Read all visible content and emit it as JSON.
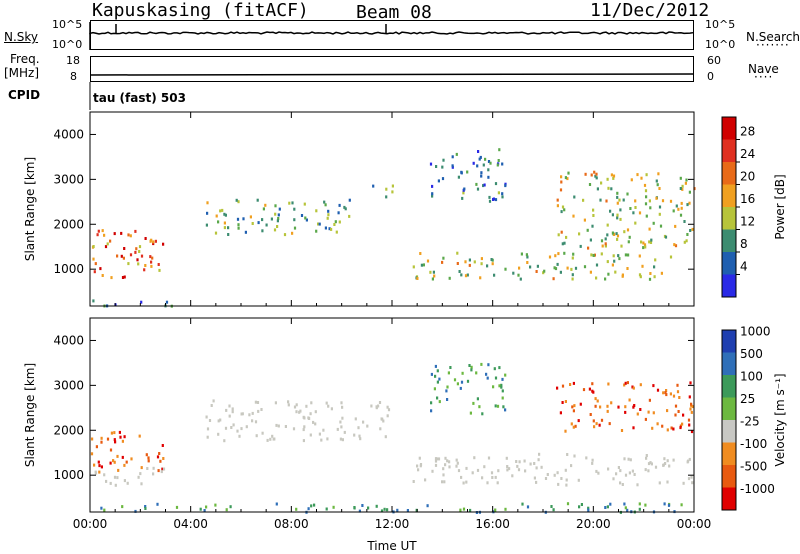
{
  "header": {
    "station": "Kapuskasing (fitACF)",
    "beam": "Beam 08",
    "date": "11/Dec/2012"
  },
  "aux_panels": {
    "nsky_label": "N.Sky",
    "nsky_ticks": [
      "10^5",
      "10^0"
    ],
    "nsearch_label": "N.Search",
    "nsearch_ticks": [
      "10^5",
      "10^0"
    ],
    "freq_label_1": "Freq.",
    "freq_label_2": "[MHz]",
    "freq_ticks": [
      "18",
      "8"
    ],
    "nave_label": "Nave",
    "nave_ticks": [
      "60",
      "0"
    ],
    "cpid_label": "CPID",
    "cpid_text": "tau (fast) 503"
  },
  "colors": {
    "power_scale": [
      "#2a2ae6",
      "#1f5fb0",
      "#3c8c70",
      "#5aa84a",
      "#b7c43a",
      "#f0a020",
      "#e86a18",
      "#e03020",
      "#d00000"
    ],
    "velocity_scale": [
      "#e00000",
      "#e85a10",
      "#f08c20",
      "#b8b8b0",
      "#c8c8c4",
      "#6cb840",
      "#3c9a5a",
      "#2f6fb8",
      "#1f3fb0"
    ],
    "ground_scatter": "#c8c8c0"
  },
  "chart_data": [
    {
      "type": "heatmap",
      "title": "",
      "xlabel": "Time UT",
      "ylabel": "Slant Range [km]",
      "colorbar_label": "Power [dB]",
      "colorbar_ticks": [
        "4",
        "8",
        "12",
        "16",
        "20",
        "24",
        "28"
      ],
      "colorbar_range": [
        0,
        30
      ],
      "xlim": [
        0,
        24
      ],
      "ylim": [
        180,
        4500
      ],
      "x_ticks": [
        "00:00",
        "04:00",
        "08:00",
        "12:00",
        "16:00",
        "20:00",
        "00:00"
      ],
      "y_ticks": [
        "1000",
        "2000",
        "3000",
        "4000"
      ],
      "echo_regions": [
        {
          "t_start": 0.0,
          "t_end": 3.0,
          "r_min": 800,
          "r_max": 1900,
          "power": 22
        },
        {
          "t_start": 0.0,
          "t_end": 3.5,
          "r_min": 200,
          "r_max": 350,
          "power": 8
        },
        {
          "t_start": 4.5,
          "t_end": 10.5,
          "r_min": 1800,
          "r_max": 2600,
          "power": 10
        },
        {
          "t_start": 11.2,
          "t_end": 12.0,
          "r_min": 2500,
          "r_max": 2900,
          "power": 10
        },
        {
          "t_start": 12.8,
          "t_end": 23.5,
          "r_min": 800,
          "r_max": 1400,
          "power": 14
        },
        {
          "t_start": 18.5,
          "t_end": 24.0,
          "r_min": 1500,
          "r_max": 3200,
          "power": 14
        },
        {
          "t_start": 13.5,
          "t_end": 16.5,
          "r_min": 2500,
          "r_max": 3700,
          "power": 6
        }
      ]
    },
    {
      "type": "heatmap",
      "title": "",
      "xlabel": "Time UT",
      "ylabel": "Slant Range [km]",
      "colorbar_label": "Velocity [m s⁻¹]",
      "colorbar_ticks": [
        "1000",
        "500",
        "100",
        "25",
        "-25",
        "-100",
        "-500",
        "-1000"
      ],
      "xlim": [
        0,
        24
      ],
      "ylim": [
        180,
        4500
      ],
      "x_ticks": [
        "00:00",
        "04:00",
        "08:00",
        "12:00",
        "16:00",
        "20:00",
        "00:00"
      ],
      "y_ticks": [
        "1000",
        "2000",
        "3000",
        "4000"
      ],
      "echo_regions": [
        {
          "t_start": 0.0,
          "t_end": 3.0,
          "r_min": 1100,
          "r_max": 2000,
          "velocity": -200
        },
        {
          "t_start": 0.0,
          "t_end": 3.0,
          "r_min": 800,
          "r_max": 1200,
          "velocity": 0
        },
        {
          "t_start": 4.5,
          "t_end": 12.0,
          "r_min": 1800,
          "r_max": 2700,
          "velocity": 0
        },
        {
          "t_start": 12.8,
          "t_end": 24.0,
          "r_min": 800,
          "r_max": 1500,
          "velocity": 0
        },
        {
          "t_start": 13.5,
          "t_end": 16.5,
          "r_min": 2400,
          "r_max": 3500,
          "velocity": 200
        },
        {
          "t_start": 18.5,
          "t_end": 24.0,
          "r_min": 2000,
          "r_max": 3100,
          "velocity": -200
        },
        {
          "t_start": 0.0,
          "t_end": 24.0,
          "r_min": 200,
          "r_max": 400,
          "velocity": 50
        }
      ]
    }
  ]
}
